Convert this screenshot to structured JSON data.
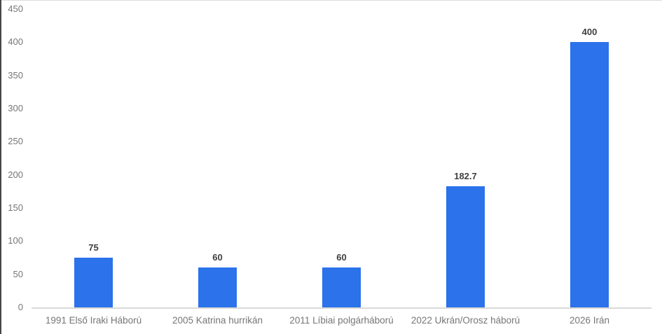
{
  "page": {
    "background": "#ffffff",
    "left_border_color": "#474747",
    "top_border_color": "#dcdcdc"
  },
  "chart_data": {
    "type": "bar",
    "title": "",
    "xlabel": "",
    "ylabel": "",
    "categories": [
      "1991 Első Iraki Háború",
      "2005 Katrina hurrikán",
      "2011 Líbiai polgárháború",
      "2022 Ukrán/Orosz háború",
      "2026 Irán"
    ],
    "values": [
      75,
      60,
      60,
      182.7,
      400
    ],
    "data_labels": [
      "75",
      "60",
      "60",
      "182.7",
      "400"
    ],
    "ylim": [
      0,
      450
    ],
    "ytick_interval": 50,
    "ytick_labels": [
      "0",
      "50",
      "100",
      "150",
      "200",
      "250",
      "300",
      "350",
      "400",
      "450"
    ],
    "legend": "none",
    "grid": "off",
    "colors": {
      "bar": "#2B72EB",
      "data_label": "#3F3F3F",
      "tick_label": "#767676",
      "axis_line": "#D9D9D9"
    }
  }
}
